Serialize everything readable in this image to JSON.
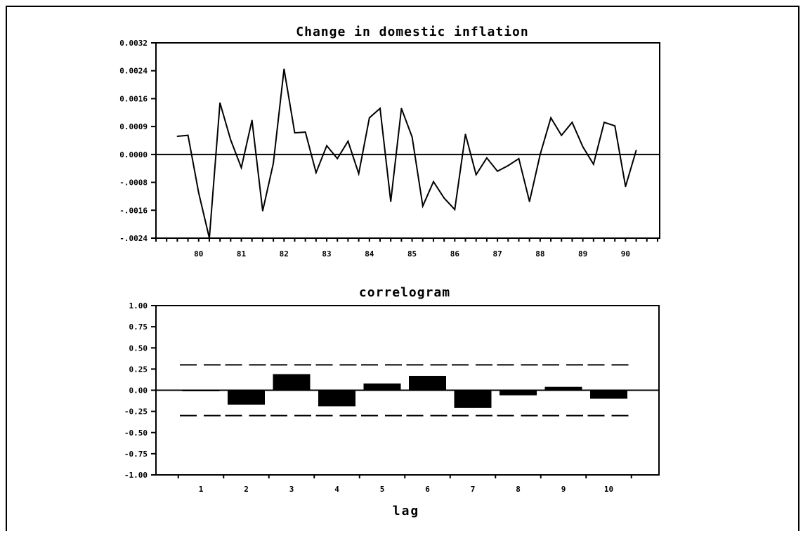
{
  "chart_data": [
    {
      "type": "line",
      "title": "Change in domestic inflation",
      "ylim": [
        -0.0024,
        0.0032
      ],
      "yticks": [
        "0.0032",
        "0.0024",
        "0.0016",
        "0.0009",
        "0.0000",
        "-.0008",
        "-.0016",
        "-.0024"
      ],
      "xticks": [
        "80",
        "81",
        "82",
        "83",
        "84",
        "85",
        "86",
        "87",
        "88",
        "89",
        "90"
      ],
      "xrange": [
        79.0,
        90.8
      ],
      "series": [
        {
          "x": [
            79.5,
            79.75,
            80.0,
            80.25,
            80.5,
            80.75,
            81.0,
            81.25,
            81.5,
            81.75,
            82.0,
            82.25,
            82.5,
            82.75,
            83.0,
            83.25,
            83.5,
            83.75,
            84.0,
            84.25,
            84.5,
            84.75,
            85.0,
            85.25,
            85.5,
            85.75,
            86.0,
            86.25,
            86.5,
            86.75,
            87.0,
            87.25,
            87.5,
            87.75,
            88.0,
            88.25,
            88.5,
            88.75,
            89.0,
            89.25,
            89.5,
            89.75,
            90.0,
            90.25
          ],
          "values": [
            0.00052,
            0.00055,
            -0.0011,
            -0.0024,
            0.00148,
            0.00042,
            -0.00038,
            0.00098,
            -0.00162,
            -0.00025,
            0.00245,
            0.00062,
            0.00064,
            -0.00052,
            0.00025,
            -0.00012,
            0.00038,
            -0.00055,
            0.00105,
            0.00132,
            -0.00135,
            0.00132,
            0.0005,
            -0.00148,
            -0.00078,
            -0.00125,
            -0.00158,
            0.00058,
            -0.00058,
            -0.0001,
            -0.00048,
            -0.00032,
            -0.00012,
            -0.00135,
            0.0,
            0.00105,
            0.00055,
            0.00092,
            0.00022,
            -0.00028,
            0.00092,
            0.00082,
            -0.00092,
            0.00012
          ]
        }
      ]
    },
    {
      "type": "bar",
      "title": "correlogram",
      "xlabel": "lag",
      "ylim": [
        -1.0,
        1.0
      ],
      "yticks": [
        "1.00",
        "0.75",
        "0.50",
        "0.25",
        "0.00",
        "-0.25",
        "-0.50",
        "-0.75",
        "-1.00"
      ],
      "categories": [
        "1",
        "2",
        "3",
        "4",
        "5",
        "6",
        "7",
        "8",
        "9",
        "10"
      ],
      "values": [
        -0.01,
        -0.17,
        0.19,
        -0.19,
        0.08,
        0.17,
        -0.21,
        -0.06,
        0.04,
        -0.1
      ],
      "confidence_band": [
        0.3,
        -0.3
      ]
    }
  ]
}
